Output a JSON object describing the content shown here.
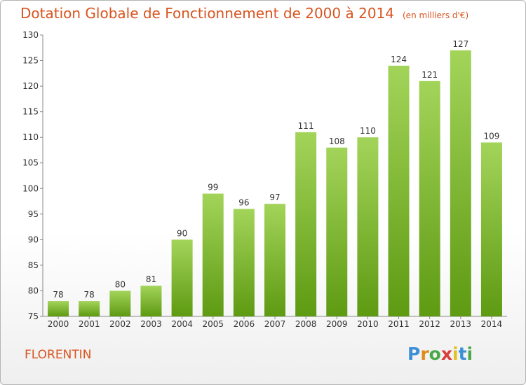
{
  "header": {
    "title": "Dotation Globale de Fonctionnement de 2000 à 2014",
    "unit": "(en milliers d'€)"
  },
  "commune": "FLORENTIN",
  "logo": {
    "letters": [
      "P",
      "r",
      "o",
      "x",
      "i",
      "t",
      "i"
    ],
    "colors": [
      "#3b8fd6",
      "#e08a1e",
      "#4aa84a",
      "#d93a3a",
      "#e0c21e",
      "#3b8fd6",
      "#4aa84a"
    ]
  },
  "chart_data": {
    "type": "bar",
    "title": "Dotation Globale de Fonctionnement de 2000 à 2014",
    "subtitle": "(en milliers d'€)",
    "xlabel": "",
    "ylabel": "",
    "categories": [
      "2000",
      "2001",
      "2002",
      "2003",
      "2004",
      "2005",
      "2006",
      "2007",
      "2008",
      "2009",
      "2010",
      "2011",
      "2012",
      "2013",
      "2014"
    ],
    "values": [
      78,
      78,
      80,
      81,
      90,
      99,
      96,
      97,
      111,
      108,
      110,
      124,
      121,
      127,
      109
    ],
    "ylim": [
      75,
      130
    ],
    "yticks": [
      75,
      80,
      85,
      90,
      95,
      100,
      105,
      110,
      115,
      120,
      125,
      130
    ],
    "grid": false,
    "bar_color_top": "#a3d45a",
    "bar_color_bottom": "#5e9a12"
  }
}
